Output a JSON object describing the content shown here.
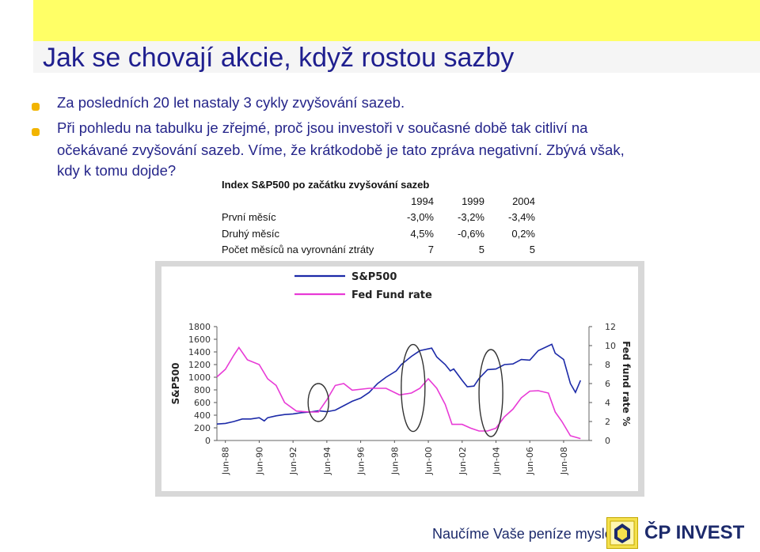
{
  "slide": {
    "title": "Jak se chovají akcie, když rostou sazby",
    "bullets": [
      "Za posledních 20 let nastaly 3 cykly zvyšování sazeb.",
      "Při pohledu na tabulku je zřejmé, proč jsou investoři v současné době tak citliví na",
      "očekávané zvyšování sazeb. Víme, že krátkodobě je tato zpráva negativní. Zbývá však,",
      "kdy k tomu dojde?"
    ]
  },
  "table": {
    "title": "Index S&P500 po začátku zvyšování sazeb",
    "years": [
      "1994",
      "1999",
      "2004"
    ],
    "rows": [
      {
        "label": "První měsíc",
        "values": [
          "-3,0%",
          "-3,2%",
          "-3,4%"
        ]
      },
      {
        "label": "Druhý měsíc",
        "values": [
          "4,5%",
          "-0,6%",
          "0,2%"
        ]
      },
      {
        "label": "Počet měsíců na vyrovnání ztráty",
        "values": [
          "7",
          "5",
          "5"
        ]
      }
    ]
  },
  "footer": {
    "slogan": "Naučíme Vaše peníze myslet",
    "brand": "ČP INVEST"
  },
  "chart_data": {
    "type": "line",
    "title": "",
    "xlabel": "",
    "ylabel": "S&P500",
    "y2label": "Fed fund rate %",
    "legend_position": "top",
    "ylim": [
      0,
      1800
    ],
    "y2lim": [
      0,
      12
    ],
    "yticks": [
      0,
      200,
      400,
      600,
      800,
      1000,
      1200,
      1400,
      1600,
      1800
    ],
    "y2ticks": [
      0,
      2,
      4,
      6,
      8,
      10,
      12
    ],
    "xticks": [
      "Jun-88",
      "Jun-90",
      "Jun-92",
      "Jun-94",
      "Jun-96",
      "Jun-98",
      "Jun-00",
      "Jun-02",
      "Jun-04",
      "Jun-06",
      "Jun-08"
    ],
    "xlim": [
      1988.0,
      2010.0
    ],
    "colors": {
      "sp500": "#1c2aa8",
      "fed": "#e83ad6",
      "ellipse": "#333333"
    },
    "series": [
      {
        "name": "S&P500",
        "axis": "left",
        "x": [
          1988.0,
          1988.5,
          1989.0,
          1989.5,
          1990.0,
          1990.5,
          1990.8,
          1991.0,
          1991.5,
          1992.0,
          1992.5,
          1993.0,
          1993.5,
          1994.0,
          1994.5,
          1995.0,
          1995.5,
          1996.0,
          1996.5,
          1997.0,
          1997.5,
          1998.0,
          1998.6,
          1998.9,
          1999.5,
          2000.0,
          2000.7,
          2001.0,
          2001.5,
          2001.8,
          2002.0,
          2002.5,
          2002.8,
          2003.2,
          2003.5,
          2004.0,
          2004.5,
          2005.0,
          2005.5,
          2006.0,
          2006.5,
          2007.0,
          2007.8,
          2008.0,
          2008.5,
          2008.9,
          2009.2,
          2009.5
        ],
        "values": [
          260,
          270,
          300,
          340,
          340,
          360,
          310,
          360,
          390,
          410,
          420,
          440,
          450,
          470,
          455,
          480,
          550,
          620,
          670,
          760,
          900,
          1000,
          1100,
          1200,
          1330,
          1420,
          1460,
          1320,
          1200,
          1100,
          1130,
          950,
          850,
          860,
          980,
          1120,
          1130,
          1200,
          1210,
          1280,
          1270,
          1420,
          1520,
          1380,
          1280,
          900,
          760,
          950
        ]
      },
      {
        "name": "Fed Fund rate",
        "axis": "right",
        "x": [
          1988.0,
          1988.5,
          1989.0,
          1989.3,
          1989.8,
          1990.5,
          1991.0,
          1991.5,
          1992.0,
          1992.7,
          1993.5,
          1994.0,
          1994.5,
          1995.0,
          1995.5,
          1996.0,
          1997.0,
          1998.0,
          1998.8,
          1999.5,
          2000.0,
          2000.5,
          2001.0,
          2001.5,
          2001.9,
          2002.5,
          2003.0,
          2003.5,
          2004.0,
          2004.5,
          2005.0,
          2005.5,
          2006.0,
          2006.5,
          2007.0,
          2007.6,
          2008.0,
          2008.4,
          2008.9,
          2009.5
        ],
        "values": [
          6.7,
          7.5,
          9.0,
          9.8,
          8.5,
          8.0,
          6.5,
          5.8,
          4.0,
          3.1,
          3.0,
          3.0,
          4.3,
          5.8,
          6.0,
          5.3,
          5.5,
          5.5,
          4.8,
          5.0,
          5.5,
          6.5,
          5.5,
          3.8,
          1.7,
          1.7,
          1.3,
          1.0,
          1.0,
          1.3,
          2.5,
          3.3,
          4.5,
          5.2,
          5.25,
          5.0,
          3.0,
          2.0,
          0.5,
          0.2
        ]
      }
    ],
    "annotations": [
      {
        "type": "ellipse",
        "center_x": 1994.0,
        "center_y": 600,
        "axis": "left"
      },
      {
        "type": "ellipse",
        "center_x": 1999.6,
        "center_y": 830,
        "axis": "left"
      },
      {
        "type": "ellipse",
        "center_x": 2004.2,
        "center_y": 750,
        "axis": "left"
      }
    ]
  }
}
